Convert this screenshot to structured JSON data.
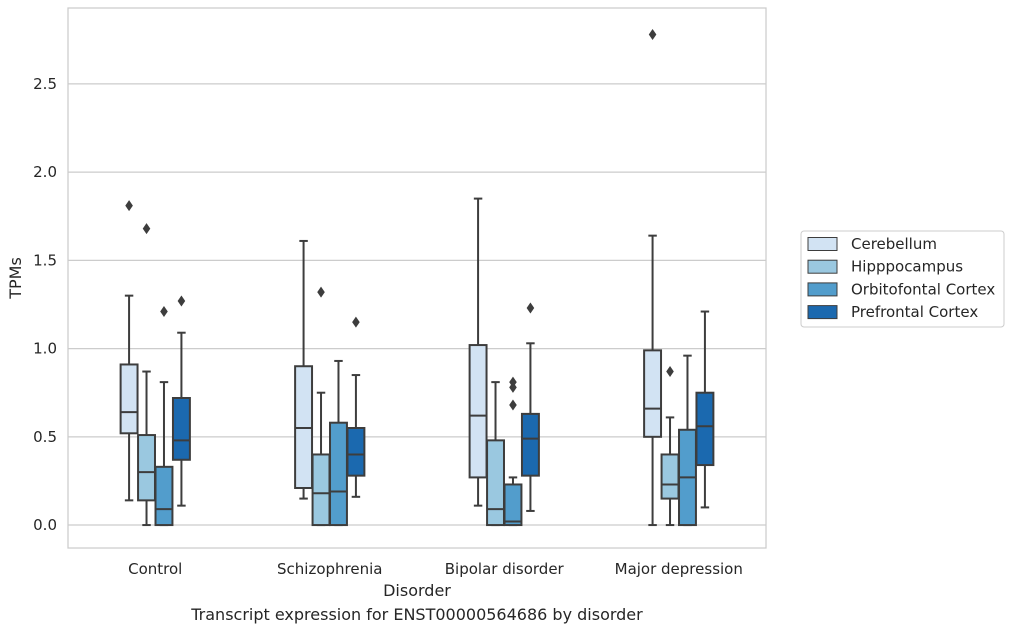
{
  "caption": "Transcript expression for ENST00000564686 by disorder",
  "chart_data": {
    "type": "box",
    "title": "",
    "xlabel": "Disorder",
    "ylabel": "TPMs",
    "ylim": [
      -0.13,
      2.93
    ],
    "yticks": [
      0.0,
      0.5,
      1.0,
      1.5,
      2.0,
      2.5
    ],
    "ytick_labels": [
      "0.0",
      "0.5",
      "1.0",
      "1.5",
      "2.0",
      "2.5"
    ],
    "grid": "horizontal",
    "legend_position": "right",
    "categories": [
      "Control",
      "Schizophrenia",
      "Bipolar disorder",
      "Major depression"
    ],
    "series": [
      {
        "name": "Cerebellum",
        "color": "#d2e3f3",
        "boxes": [
          {
            "whislo": 0.14,
            "q1": 0.52,
            "med": 0.64,
            "q3": 0.91,
            "whishi": 1.3,
            "fliers": [
              1.81
            ]
          },
          {
            "whislo": 0.15,
            "q1": 0.21,
            "med": 0.55,
            "q3": 0.9,
            "whishi": 1.61,
            "fliers": []
          },
          {
            "whislo": 0.11,
            "q1": 0.27,
            "med": 0.62,
            "q3": 1.02,
            "whishi": 1.85,
            "fliers": []
          },
          {
            "whislo": 0.0,
            "q1": 0.5,
            "med": 0.66,
            "q3": 0.99,
            "whishi": 1.64,
            "fliers": [
              2.78
            ]
          }
        ]
      },
      {
        "name": "Hipppocampus",
        "color": "#9ac8e0",
        "boxes": [
          {
            "whislo": 0.0,
            "q1": 0.14,
            "med": 0.3,
            "q3": 0.51,
            "whishi": 0.87,
            "fliers": [
              1.68
            ]
          },
          {
            "whislo": 0.0,
            "q1": 0.0,
            "med": 0.18,
            "q3": 0.4,
            "whishi": 0.75,
            "fliers": [
              1.32
            ]
          },
          {
            "whislo": 0.0,
            "q1": 0.0,
            "med": 0.09,
            "q3": 0.48,
            "whishi": 0.81,
            "fliers": []
          },
          {
            "whislo": 0.0,
            "q1": 0.15,
            "med": 0.23,
            "q3": 0.4,
            "whishi": 0.61,
            "fliers": [
              0.87
            ]
          }
        ]
      },
      {
        "name": "Orbitofontal Cortex",
        "color": "#529dcc",
        "boxes": [
          {
            "whislo": 0.0,
            "q1": 0.0,
            "med": 0.09,
            "q3": 0.33,
            "whishi": 0.81,
            "fliers": [
              1.21
            ]
          },
          {
            "whislo": 0.0,
            "q1": 0.0,
            "med": 0.19,
            "q3": 0.58,
            "whishi": 0.93,
            "fliers": []
          },
          {
            "whislo": 0.0,
            "q1": 0.0,
            "med": 0.02,
            "q3": 0.23,
            "whishi": 0.27,
            "fliers": [
              0.68,
              0.78,
              0.81
            ]
          },
          {
            "whislo": 0.0,
            "q1": 0.0,
            "med": 0.27,
            "q3": 0.54,
            "whishi": 0.96,
            "fliers": []
          }
        ]
      },
      {
        "name": "Prefrontal Cortex",
        "color": "#1b69af",
        "boxes": [
          {
            "whislo": 0.11,
            "q1": 0.37,
            "med": 0.48,
            "q3": 0.72,
            "whishi": 1.09,
            "fliers": [
              1.27
            ]
          },
          {
            "whislo": 0.16,
            "q1": 0.28,
            "med": 0.4,
            "q3": 0.55,
            "whishi": 0.85,
            "fliers": [
              1.15
            ]
          },
          {
            "whislo": 0.08,
            "q1": 0.28,
            "med": 0.49,
            "q3": 0.63,
            "whishi": 1.03,
            "fliers": [
              1.23
            ]
          },
          {
            "whislo": 0.1,
            "q1": 0.34,
            "med": 0.56,
            "q3": 0.75,
            "whishi": 1.21,
            "fliers": []
          }
        ]
      }
    ]
  }
}
